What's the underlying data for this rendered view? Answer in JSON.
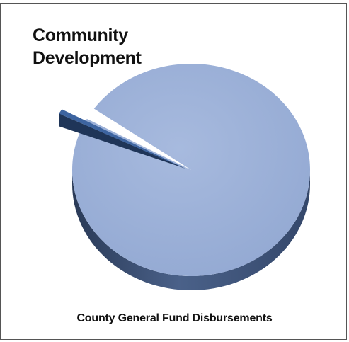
{
  "chart_data": {
    "type": "pie",
    "style": "3d-exploded",
    "title": "County General Fund Disbursements",
    "slices": [
      {
        "label_lines": [
          "Community",
          "Development"
        ],
        "value": 1.8,
        "unit": "percent",
        "exploded": true,
        "color": "#3d64a0"
      },
      {
        "label_lines": [],
        "value": 98.2,
        "unit": "percent",
        "exploded": false,
        "color": "#9cb0d8"
      }
    ],
    "colors": {
      "main_top": "#9cb0d8",
      "main_side": "#3e5377",
      "small_top": "#3d64a0",
      "small_side": "#1f3558"
    },
    "legend": "none"
  }
}
